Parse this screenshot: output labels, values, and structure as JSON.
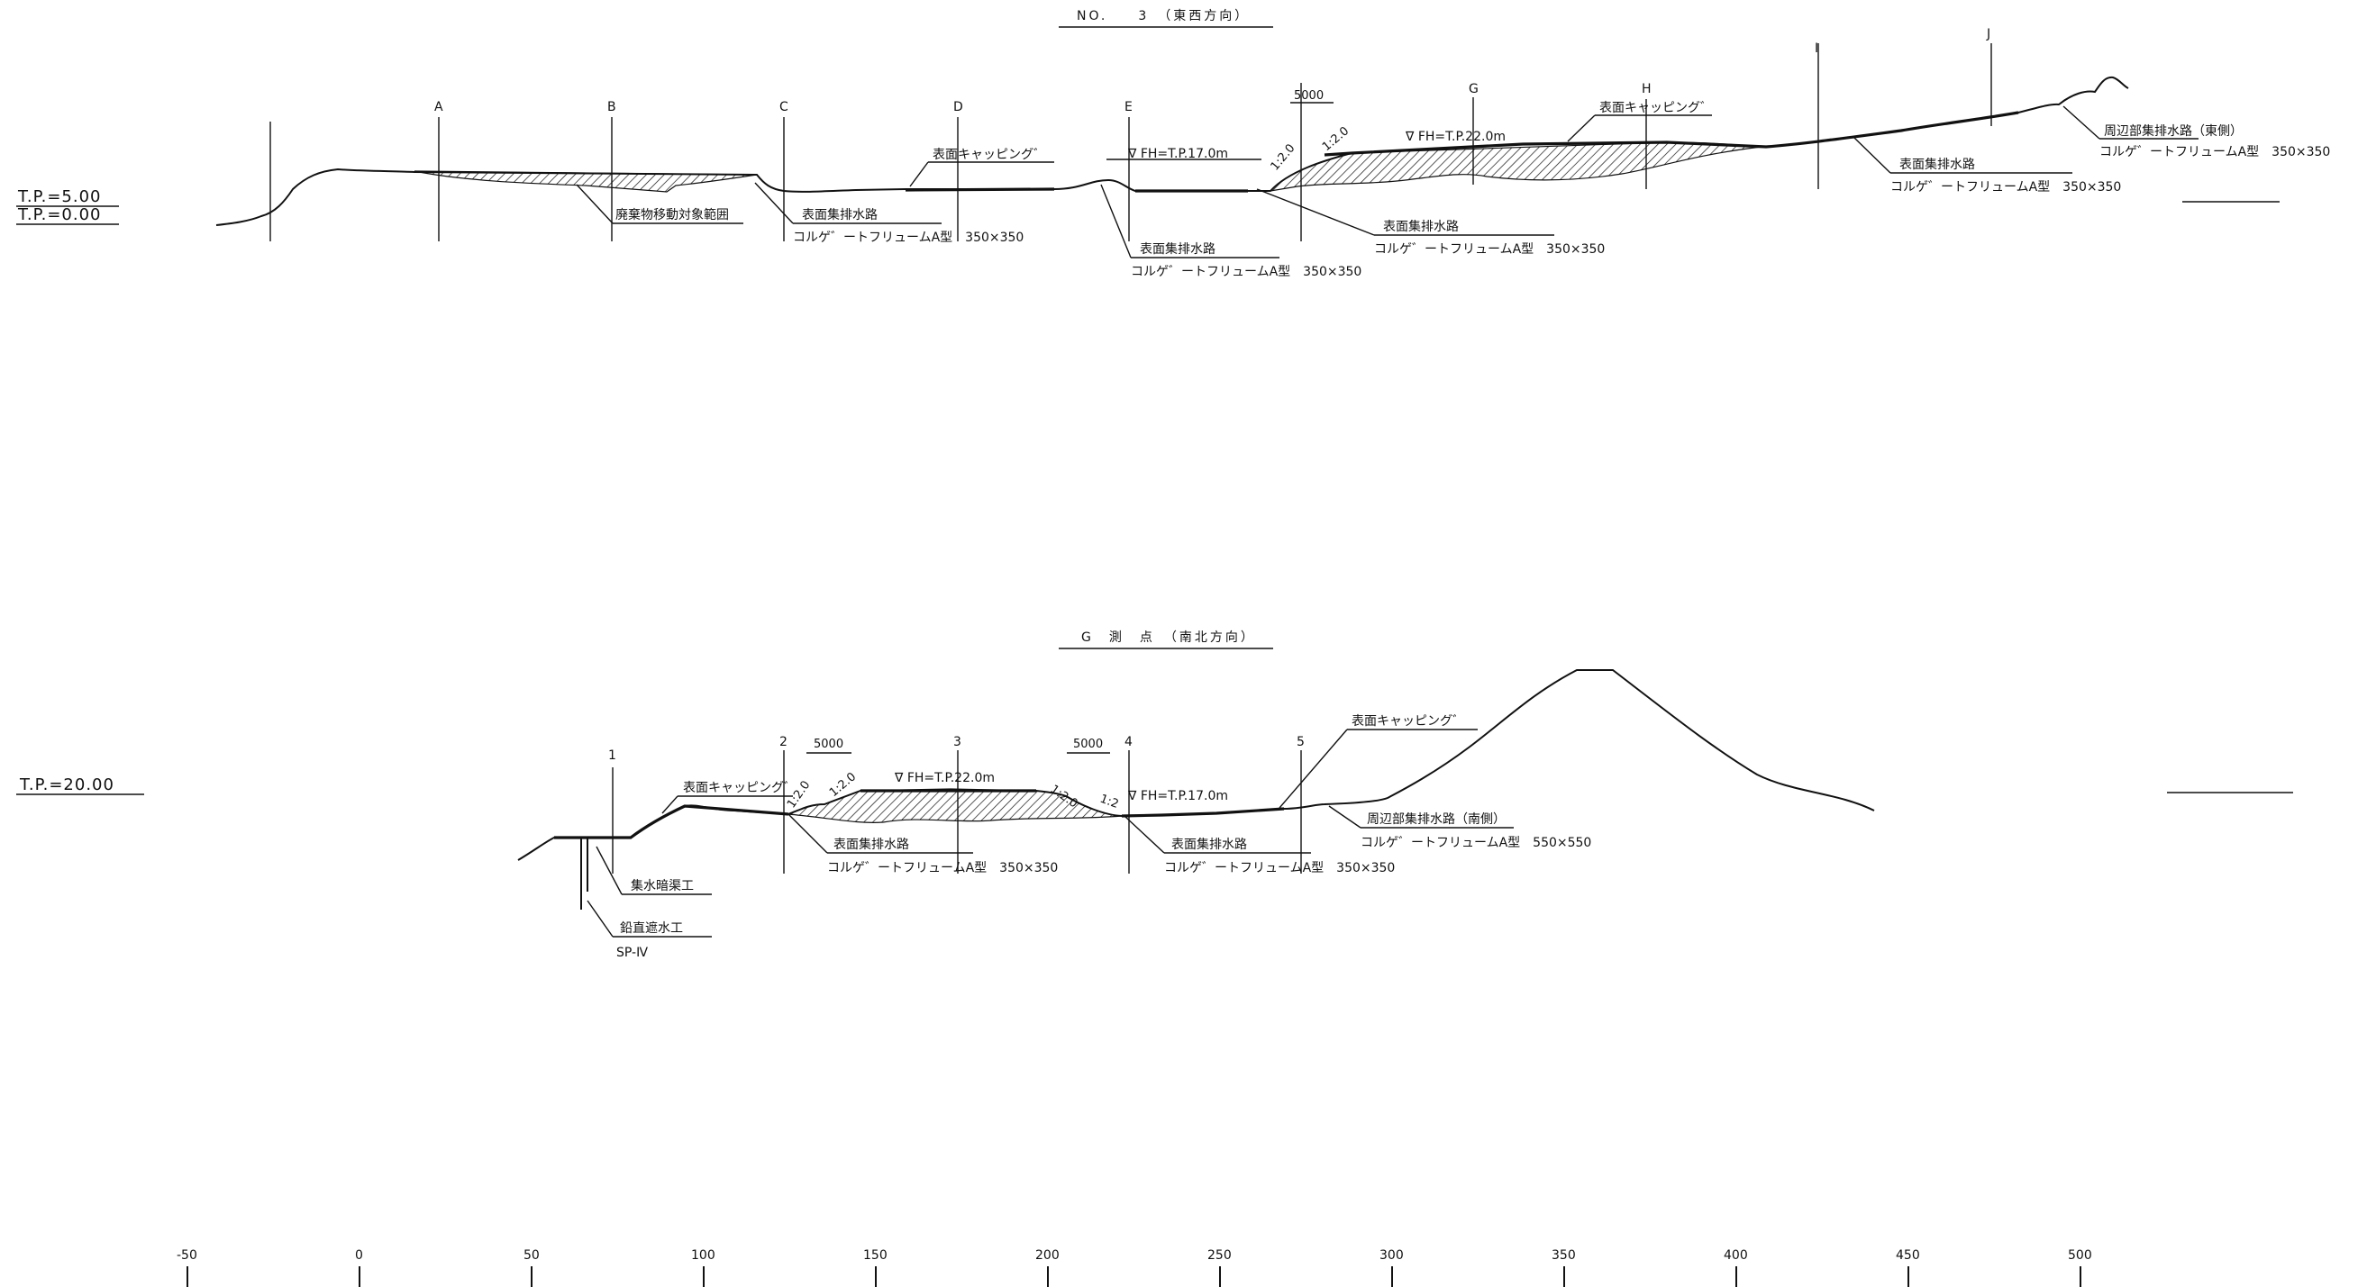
{
  "section1": {
    "title": "NO.　　3　（東西方向）",
    "stations": [
      "A",
      "B",
      "C",
      "D",
      "E",
      "G",
      "H",
      "I",
      "J"
    ],
    "tp_labels": [
      "T.P.=5.00",
      "T.P.=0.00"
    ],
    "annotations": {
      "waste_range": "廃棄物移動対象範囲",
      "drain_c_1": "表面集排水路",
      "drain_c_2": "コルゲ゛ートフリュームA型　350×350",
      "capping_d": "表面キャッピング゛",
      "fh17": "∇ FH=T.P.17.0m",
      "drain_e_1": "表面集排水路",
      "drain_e_2": "コルゲ゛ートフリュームA型　350×350",
      "dim5000": "5000",
      "slope_a": "1:2.0",
      "slope_b": "1:2.0",
      "fh22": "∇ FH=T.P.22.0m",
      "capping_g": "表面キャッピング゛",
      "drain_f_1": "表面集排水路",
      "drain_f_2": "コルゲ゛ートフリュームA型　350×350",
      "drain_i_1": "表面集排水路",
      "drain_i_2": "コルゲ゛ートフリュームA型　350×350",
      "east_1": "周辺部集排水路（東側）",
      "east_2": "コルゲ゛ートフリュームA型　350×350"
    }
  },
  "section2": {
    "title": "G　測　点　（南北方向）",
    "stations": [
      "1",
      "2",
      "3",
      "4",
      "5"
    ],
    "tp_label": "T.P.=20.00",
    "annotations": {
      "capping_l": "表面キャッピング゛",
      "dim5000_l": "5000",
      "dim5000_r": "5000",
      "slope_1": "1:2.0",
      "slope_2": "1:2.0",
      "slope_3": "1:2.0",
      "slope_4": "1:2",
      "fh22": "∇ FH=T.P.22.0m",
      "fh17": "∇ FH=T.P.17.0m",
      "capping_r": "表面キャッピング゛",
      "drain_2_1": "表面集排水路",
      "drain_2_2": "コルゲ゛ートフリュームA型　350×350",
      "drain_4_1": "表面集排水路",
      "drain_4_2": "コルゲ゛ートフリュームA型　350×350",
      "south_1": "周辺部集排水路（南側）",
      "south_2": "コルゲ゛ートフリュームA型　550×550",
      "culvert": "集水暗渠工",
      "cutoff": "鉛直遮水工",
      "spw": "SP-Ⅳ"
    }
  },
  "scale": {
    "ticks": [
      "-50",
      "0",
      "50",
      "100",
      "150",
      "200",
      "250",
      "300",
      "350",
      "400",
      "450",
      "500"
    ]
  }
}
